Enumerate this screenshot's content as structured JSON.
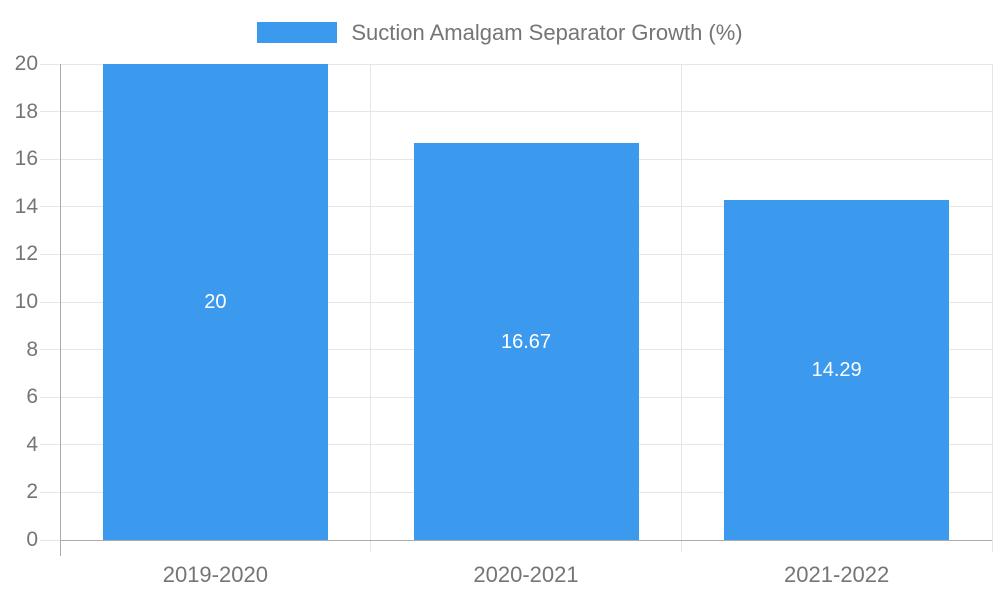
{
  "chart_data": {
    "type": "bar",
    "title": "Suction Amalgam Separator Growth (%)",
    "legend": {
      "position": "top",
      "entries": [
        {
          "label": "Suction Amalgam Separator Growth (%)",
          "color": "#3B99EE"
        }
      ]
    },
    "categories": [
      "2019-2020",
      "2020-2021",
      "2021-2022"
    ],
    "series": [
      {
        "name": "Suction Amalgam Separator Growth (%)",
        "values": [
          20,
          16.67,
          14.29
        ],
        "labels": [
          "20",
          "16.67",
          "14.29"
        ]
      }
    ],
    "xlabel": "",
    "ylabel": "",
    "ylim": [
      0,
      20
    ],
    "yticks": [
      0,
      2,
      4,
      6,
      8,
      10,
      12,
      14,
      16,
      18,
      20
    ],
    "ytick_labels": [
      "0",
      "2",
      "4",
      "6",
      "8",
      "10",
      "12",
      "14",
      "16",
      "18",
      "20"
    ],
    "grid": true
  },
  "colors": {
    "bar": "#3B99EE",
    "grid": "#e6e6e6",
    "axis": "#ababab",
    "tick_label": "#757575",
    "category_label": "#757575",
    "legend_text": "#757575",
    "bar_label": "#ffffff",
    "background": "#ffffff"
  }
}
